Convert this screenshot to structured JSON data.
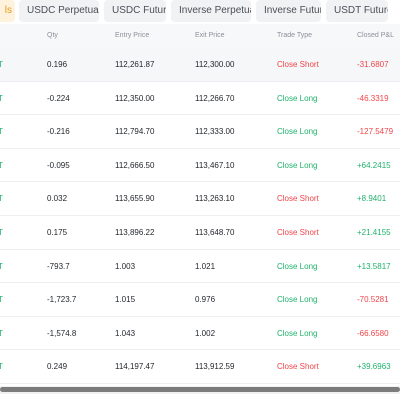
{
  "tabs": [
    {
      "label": "ls",
      "active": true
    },
    {
      "label": "USDC Perpetuals",
      "active": false
    },
    {
      "label": "USDC Futures",
      "active": false
    },
    {
      "label": "Inverse Perpetuals",
      "active": false
    },
    {
      "label": "Inverse Futures",
      "active": false
    },
    {
      "label": "USDT Futures",
      "active": false
    }
  ],
  "columns": {
    "qty": "Qty",
    "entry": "Entry Price",
    "exit": "Exit Price",
    "type": "Trade Type",
    "pnl": "Closed P&L"
  },
  "rows": [
    {
      "sym": "T",
      "qty": "0.196",
      "entry": "112,261.87",
      "exit": "112,300.00",
      "type": "Close Short",
      "pnl": "-31.6807"
    },
    {
      "sym": "T",
      "qty": "-0.224",
      "entry": "112,350.00",
      "exit": "112,266.70",
      "type": "Close Long",
      "pnl": "-46.3319"
    },
    {
      "sym": "T",
      "qty": "-0.216",
      "entry": "112,794.70",
      "exit": "112,333.00",
      "type": "Close Long",
      "pnl": "-127.5479"
    },
    {
      "sym": "T",
      "qty": "-0.095",
      "entry": "112,666.50",
      "exit": "113,467.10",
      "type": "Close Long",
      "pnl": "+64.2415"
    },
    {
      "sym": "T",
      "qty": "0.032",
      "entry": "113,655.90",
      "exit": "113,263.10",
      "type": "Close Short",
      "pnl": "+8.9401"
    },
    {
      "sym": "T",
      "qty": "0.175",
      "entry": "113,896.22",
      "exit": "113,648.70",
      "type": "Close Short",
      "pnl": "+21.4155"
    },
    {
      "sym": "T",
      "qty": "-793.7",
      "entry": "1.003",
      "exit": "1.021",
      "type": "Close Long",
      "pnl": "+13.5817"
    },
    {
      "sym": "T",
      "qty": "-1,723.7",
      "entry": "1.015",
      "exit": "0.976",
      "type": "Close Long",
      "pnl": "-70.5281"
    },
    {
      "sym": "T",
      "qty": "-1,574.8",
      "entry": "1.043",
      "exit": "1.002",
      "type": "Close Long",
      "pnl": "-66.6580"
    },
    {
      "sym": "T",
      "qty": "0.249",
      "entry": "114,197.47",
      "exit": "113,912.59",
      "type": "Close Short",
      "pnl": "+39.6963"
    }
  ],
  "colors": {
    "profit": "#20b26c",
    "loss": "#ef454a",
    "accent": "#e39b1b"
  }
}
